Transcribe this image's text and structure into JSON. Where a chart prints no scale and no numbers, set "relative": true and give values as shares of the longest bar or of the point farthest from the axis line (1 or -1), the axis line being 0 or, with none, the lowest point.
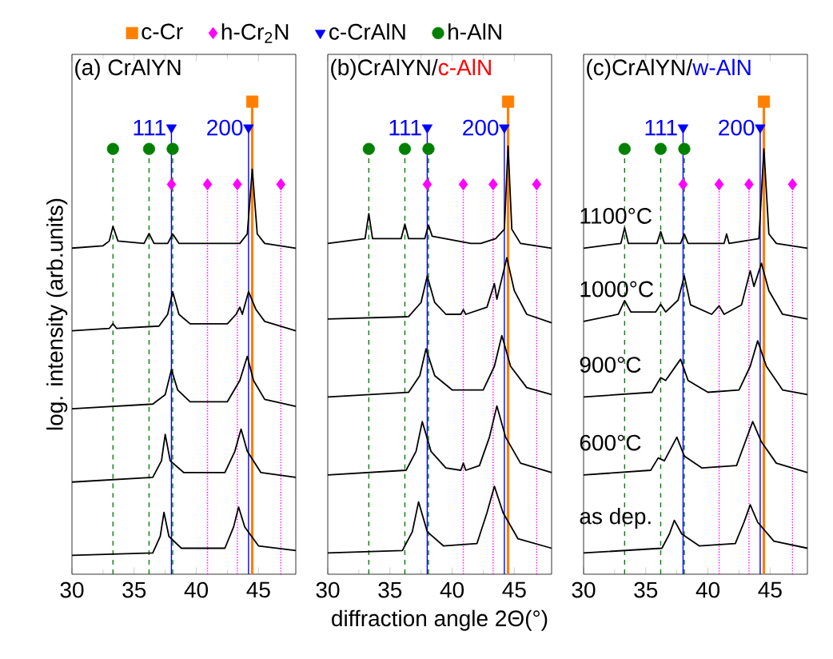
{
  "chart_data": [
    {
      "type": "line",
      "title": "(a) CrAlYN",
      "ylabel": "log. intensity (arb.units)",
      "relative": true,
      "xlim": [
        30,
        48
      ],
      "xticks": [
        30,
        35,
        40,
        45
      ],
      "tick_labels": "x",
      "legend": "top",
      "line_style": "solid",
      "marker": "none",
      "series": [
        {
          "color": "#000000",
          "x": [
            30,
            32.5,
            33.0,
            33.3,
            33.7,
            35.8,
            36.2,
            36.6,
            37.7,
            38.1,
            38.6,
            43.5,
            44.1,
            44.5,
            44.9,
            45.5,
            48
          ],
          "values": [
            0.69,
            0.695,
            0.705,
            0.736,
            0.705,
            0.7,
            0.721,
            0.7,
            0.7,
            0.72,
            0.7,
            0.7,
            0.72,
            0.857,
            0.72,
            0.7,
            0.69
          ]
        },
        {
          "color": "#000000",
          "x": [
            30,
            33.0,
            33.3,
            33.6,
            37.0,
            37.7,
            38.1,
            38.6,
            39.5,
            42.5,
            43.2,
            43.5,
            43.7,
            44.2,
            44.8,
            45.5,
            48
          ],
          "values": [
            0.515,
            0.52,
            0.53,
            0.52,
            0.525,
            0.55,
            0.598,
            0.55,
            0.53,
            0.53,
            0.55,
            0.565,
            0.55,
            0.598,
            0.56,
            0.535,
            0.515
          ]
        },
        {
          "color": "#000000",
          "x": [
            30,
            36.5,
            37.5,
            38.0,
            38.5,
            39.5,
            42.5,
            43.5,
            44.1,
            44.6,
            45.5,
            48
          ],
          "values": [
            0.35,
            0.36,
            0.38,
            0.433,
            0.39,
            0.365,
            0.365,
            0.41,
            0.461,
            0.41,
            0.37,
            0.355
          ]
        },
        {
          "color": "#000000",
          "x": [
            30,
            36.5,
            37.2,
            37.5,
            37.9,
            39,
            42.3,
            43.1,
            43.6,
            44.1,
            45.2,
            48
          ],
          "values": [
            0.195,
            0.205,
            0.24,
            0.296,
            0.24,
            0.215,
            0.215,
            0.26,
            0.307,
            0.26,
            0.215,
            0.205
          ]
        },
        {
          "color": "#000000",
          "x": [
            30,
            36.5,
            37.1,
            37.4,
            37.8,
            38.8,
            42.3,
            43.0,
            43.4,
            43.9,
            45,
            48
          ],
          "values": [
            0.04,
            0.045,
            0.08,
            0.131,
            0.08,
            0.055,
            0.055,
            0.1,
            0.142,
            0.1,
            0.06,
            0.05
          ]
        },
        {
          "type": "scatter",
          "name": "c-Cr",
          "color": "#ff8000",
          "marker": "square",
          "x": [
            44.5
          ],
          "values": [
            1.0
          ]
        },
        {
          "type": "scatter",
          "name": "h-Cr$_{2}$N",
          "color": "#ff00ff",
          "marker": "diamond",
          "x": [
            38.0,
            40.9,
            43.3,
            46.8
          ],
          "values": [
            0.825,
            0.825,
            0.825,
            0.825
          ]
        },
        {
          "type": "scatter",
          "name": "c-CrAlN",
          "color": "#0000ff",
          "marker": "triangle",
          "x": [
            38.0,
            44.2
          ],
          "values": [
            0.945,
            0.945
          ]
        },
        {
          "type": "scatter",
          "name": "h-AlN",
          "color": "#008000",
          "marker": "circle",
          "x": [
            33.3,
            36.2,
            38.1
          ],
          "values": [
            0.9,
            0.9,
            0.9
          ]
        }
      ],
      "ref_lines": [
        {
          "axis": "x",
          "value": 33.3,
          "color": "#008000",
          "line_style": "dashed"
        },
        {
          "axis": "x",
          "value": 36.2,
          "color": "#008000",
          "line_style": "dashed"
        },
        {
          "axis": "x",
          "value": 38.1,
          "color": "#008000",
          "line_style": "dashed"
        },
        {
          "axis": "x",
          "value": 40.9,
          "color": "#ff00ff",
          "line_style": "dotted"
        },
        {
          "axis": "x",
          "value": 43.3,
          "color": "#ff00ff",
          "line_style": "dotted"
        },
        {
          "axis": "x",
          "value": 46.8,
          "color": "#ff00ff",
          "line_style": "dotted"
        },
        {
          "axis": "x",
          "value": 44.5,
          "color": "#ff8000",
          "line_style": "solid"
        },
        {
          "axis": "x",
          "value": 38.0,
          "color": "#0000ff",
          "line_style": "solid"
        },
        {
          "axis": "x",
          "value": 44.2,
          "color": "#0000ff",
          "line_style": "solid"
        }
      ],
      "annotations": [
        "111",
        "200"
      ]
    },
    {
      "type": "line",
      "title": "(b)CrAlYN/",
      "subtitle": "c-AlN",
      "xlabel": "diffraction angle 2Θ(°)",
      "relative": true,
      "xlim": [
        30,
        48
      ],
      "xticks": [
        30,
        35,
        40,
        45
      ],
      "tick_labels": "x",
      "line_style": "solid",
      "marker": "none",
      "series": [
        {
          "color": "#000000",
          "x": [
            30,
            33.0,
            33.3,
            33.6,
            35.9,
            36.2,
            36.5,
            37.8,
            38.1,
            38.4,
            41.5,
            42.3,
            43.5,
            44.2,
            44.5,
            44.8,
            45.5,
            48
          ],
          "values": [
            0.7,
            0.71,
            0.763,
            0.71,
            0.71,
            0.741,
            0.71,
            0.71,
            0.739,
            0.715,
            0.7,
            0.7,
            0.71,
            0.73,
            0.906,
            0.73,
            0.7,
            0.69
          ]
        },
        {
          "color": "#000000",
          "x": [
            30,
            36.5,
            37.5,
            38.0,
            38.6,
            39.5,
            40.7,
            40.9,
            41.1,
            42.8,
            43.4,
            43.6,
            44.4,
            45.0,
            46,
            48
          ],
          "values": [
            0.54,
            0.545,
            0.575,
            0.631,
            0.575,
            0.55,
            0.55,
            0.56,
            0.55,
            0.565,
            0.615,
            0.582,
            0.67,
            0.6,
            0.55,
            0.532
          ]
        },
        {
          "color": "#000000",
          "x": [
            30,
            36.5,
            37.4,
            37.9,
            38.6,
            40,
            42.5,
            43.4,
            44.0,
            44.7,
            46,
            48
          ],
          "values": [
            0.375,
            0.385,
            0.42,
            0.477,
            0.42,
            0.39,
            0.39,
            0.44,
            0.505,
            0.44,
            0.395,
            0.38
          ]
        },
        {
          "color": "#000000",
          "x": [
            30,
            36.3,
            37.1,
            37.6,
            38.3,
            39.5,
            40.7,
            40.9,
            41.1,
            42.2,
            43.0,
            43.6,
            44.3,
            45.5,
            48
          ],
          "values": [
            0.21,
            0.22,
            0.26,
            0.323,
            0.26,
            0.225,
            0.22,
            0.235,
            0.22,
            0.23,
            0.29,
            0.356,
            0.29,
            0.235,
            0.215
          ]
        },
        {
          "color": "#000000",
          "x": [
            30,
            36,
            36.8,
            37.3,
            38.0,
            39.3,
            42,
            42.8,
            43.4,
            44.1,
            45.3,
            48
          ],
          "values": [
            0.045,
            0.05,
            0.09,
            0.153,
            0.09,
            0.06,
            0.065,
            0.13,
            0.186,
            0.13,
            0.075,
            0.055
          ]
        },
        {
          "type": "scatter",
          "color": "#ff8000",
          "marker": "square",
          "x": [
            44.5
          ],
          "values": [
            1.0
          ]
        },
        {
          "type": "scatter",
          "color": "#ff00ff",
          "marker": "diamond",
          "x": [
            38.0,
            40.9,
            43.3,
            46.8
          ],
          "values": [
            0.825,
            0.825,
            0.825,
            0.825
          ]
        },
        {
          "type": "scatter",
          "color": "#0000ff",
          "marker": "triangle",
          "x": [
            38.0,
            44.2
          ],
          "values": [
            0.945,
            0.945
          ]
        },
        {
          "type": "scatter",
          "color": "#008000",
          "marker": "circle",
          "x": [
            33.3,
            36.2,
            38.1
          ],
          "values": [
            0.9,
            0.9,
            0.9
          ]
        }
      ],
      "ref_lines": [
        {
          "axis": "x",
          "value": 33.3,
          "color": "#008000",
          "line_style": "dashed"
        },
        {
          "axis": "x",
          "value": 36.2,
          "color": "#008000",
          "line_style": "dashed"
        },
        {
          "axis": "x",
          "value": 38.1,
          "color": "#008000",
          "line_style": "dashed"
        },
        {
          "axis": "x",
          "value": 40.9,
          "color": "#ff00ff",
          "line_style": "dotted"
        },
        {
          "axis": "x",
          "value": 43.3,
          "color": "#ff00ff",
          "line_style": "dotted"
        },
        {
          "axis": "x",
          "value": 46.8,
          "color": "#ff00ff",
          "line_style": "dotted"
        },
        {
          "axis": "x",
          "value": 44.5,
          "color": "#ff8000",
          "line_style": "solid"
        },
        {
          "axis": "x",
          "value": 38.0,
          "color": "#0000ff",
          "line_style": "solid"
        },
        {
          "axis": "x",
          "value": 44.2,
          "color": "#0000ff",
          "line_style": "solid"
        }
      ],
      "annotations": [
        "111",
        "200"
      ]
    },
    {
      "type": "line",
      "title": "(c)CrAlYN/",
      "subtitle": "w-AlN",
      "relative": true,
      "xlim": [
        30,
        48
      ],
      "xticks": [
        30,
        35,
        40,
        45
      ],
      "tick_labels": "x",
      "line_style": "solid",
      "marker": "none",
      "series": [
        {
          "color": "#000000",
          "x": [
            30,
            33.0,
            33.3,
            33.6,
            35.9,
            36.2,
            36.5,
            37.8,
            38.1,
            38.4,
            41.3,
            41.5,
            41.7,
            44.1,
            44.5,
            44.9,
            45.5,
            48
          ],
          "values": [
            0.69,
            0.7,
            0.733,
            0.7,
            0.7,
            0.725,
            0.7,
            0.7,
            0.72,
            0.7,
            0.7,
            0.72,
            0.7,
            0.71,
            0.9,
            0.72,
            0.7,
            0.69
          ]
        },
        {
          "color": "#000000",
          "x": [
            30,
            32.8,
            33.3,
            33.8,
            35.8,
            36.2,
            36.6,
            37.6,
            38.1,
            38.6,
            40.3,
            40.9,
            41.3,
            42.7,
            43.4,
            43.7,
            44.3,
            44.9,
            46,
            48
          ],
          "values": [
            0.535,
            0.55,
            0.579,
            0.555,
            0.555,
            0.571,
            0.555,
            0.58,
            0.631,
            0.57,
            0.55,
            0.568,
            0.55,
            0.57,
            0.642,
            0.609,
            0.658,
            0.6,
            0.55,
            0.54
          ]
        },
        {
          "color": "#000000",
          "x": [
            30,
            35.5,
            36.2,
            36.6,
            37.8,
            38.4,
            40,
            42.5,
            43.4,
            44.0,
            44.7,
            46,
            48
          ],
          "values": [
            0.375,
            0.385,
            0.416,
            0.41,
            0.455,
            0.41,
            0.385,
            0.39,
            0.44,
            0.494,
            0.44,
            0.39,
            0.38
          ]
        },
        {
          "color": "#000000",
          "x": [
            30,
            35.4,
            36.0,
            36.5,
            37.5,
            38.1,
            39.5,
            42.3,
            43.0,
            43.6,
            44.3,
            45.5,
            48
          ],
          "values": [
            0.21,
            0.22,
            0.246,
            0.24,
            0.29,
            0.25,
            0.225,
            0.23,
            0.28,
            0.323,
            0.28,
            0.235,
            0.215
          ]
        },
        {
          "color": "#000000",
          "x": [
            30,
            36.3,
            36.9,
            37.3,
            37.9,
            39.3,
            42.2,
            42.9,
            43.4,
            44.0,
            45.3,
            48
          ],
          "values": [
            0.045,
            0.055,
            0.085,
            0.114,
            0.085,
            0.06,
            0.065,
            0.11,
            0.147,
            0.11,
            0.07,
            0.055
          ]
        },
        {
          "type": "scatter",
          "color": "#ff8000",
          "marker": "square",
          "x": [
            44.5
          ],
          "values": [
            1.0
          ]
        },
        {
          "type": "scatter",
          "color": "#ff00ff",
          "marker": "diamond",
          "x": [
            38.0,
            40.9,
            43.3,
            46.8
          ],
          "values": [
            0.825,
            0.825,
            0.825,
            0.825
          ]
        },
        {
          "type": "scatter",
          "color": "#0000ff",
          "marker": "triangle",
          "x": [
            38.0,
            44.2
          ],
          "values": [
            0.945,
            0.945
          ]
        },
        {
          "type": "scatter",
          "color": "#008000",
          "marker": "circle",
          "x": [
            33.3,
            36.2,
            38.1
          ],
          "values": [
            0.9,
            0.9,
            0.9
          ]
        }
      ],
      "ref_lines": [
        {
          "axis": "x",
          "value": 33.3,
          "color": "#008000",
          "line_style": "dashed"
        },
        {
          "axis": "x",
          "value": 36.2,
          "color": "#008000",
          "line_style": "dashed"
        },
        {
          "axis": "x",
          "value": 38.1,
          "color": "#008000",
          "line_style": "dashed"
        },
        {
          "axis": "x",
          "value": 40.9,
          "color": "#ff00ff",
          "line_style": "dotted"
        },
        {
          "axis": "x",
          "value": 43.3,
          "color": "#ff00ff",
          "line_style": "dotted"
        },
        {
          "axis": "x",
          "value": 46.8,
          "color": "#ff00ff",
          "line_style": "dotted"
        },
        {
          "axis": "x",
          "value": 44.5,
          "color": "#ff8000",
          "line_style": "solid"
        },
        {
          "axis": "x",
          "value": 38.0,
          "color": "#0000ff",
          "line_style": "solid"
        },
        {
          "axis": "x",
          "value": 44.2,
          "color": "#0000ff",
          "line_style": "solid"
        }
      ],
      "annotations": [
        "111",
        "200",
        "1100°C",
        "1000°C",
        "900°C",
        "600°C",
        "as dep."
      ]
    }
  ]
}
